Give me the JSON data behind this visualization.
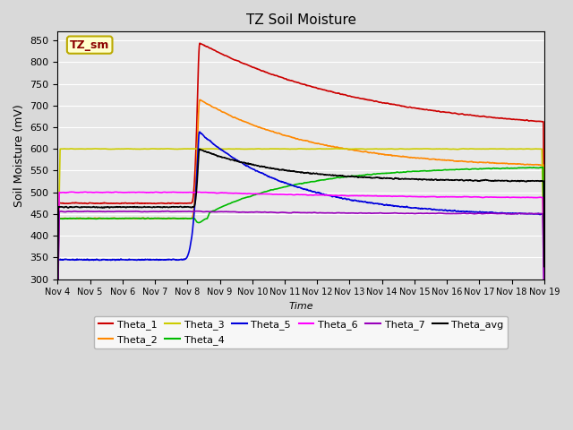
{
  "title": "TZ Soil Moisture",
  "ylabel": "Soil Moisture (mV)",
  "xlabel": "Time",
  "watermark": "TZ_sm",
  "ylim": [
    300,
    870
  ],
  "yticks": [
    300,
    350,
    400,
    450,
    500,
    550,
    600,
    650,
    700,
    750,
    800,
    850
  ],
  "xlim": [
    4,
    19
  ],
  "xtick_days": [
    4,
    5,
    6,
    7,
    8,
    9,
    10,
    11,
    12,
    13,
    14,
    15,
    16,
    17,
    18,
    19
  ],
  "event_day": 8.35,
  "colors": {
    "Theta_1": "#cc0000",
    "Theta_2": "#ff8800",
    "Theta_3": "#cccc00",
    "Theta_4": "#00bb00",
    "Theta_5": "#0000dd",
    "Theta_6": "#ff00ff",
    "Theta_7": "#9900bb",
    "Theta_avg": "#000000"
  },
  "legend_row1": [
    "Theta_1",
    "Theta_2",
    "Theta_3",
    "Theta_4",
    "Theta_5",
    "Theta_6"
  ],
  "legend_row2": [
    "Theta_7",
    "Theta_avg"
  ],
  "fig_bg": "#d9d9d9",
  "ax_bg": "#e8e8e8",
  "grid_color": "#ffffff",
  "watermark_fg": "#8b0000",
  "watermark_bg": "#ffffcc",
  "watermark_edge": "#bbaa00"
}
